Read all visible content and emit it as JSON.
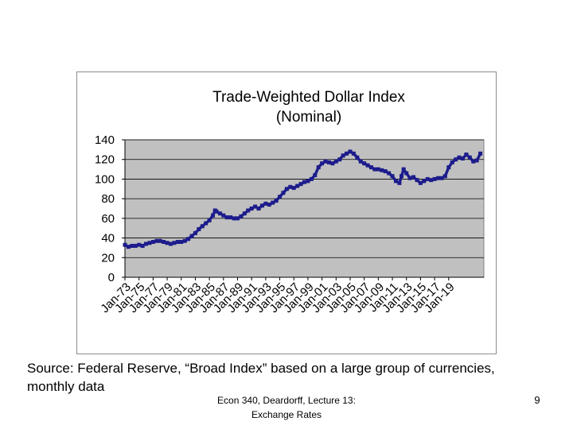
{
  "chart_data": {
    "type": "line",
    "title": "Trade-Weighted Dollar Index (Nominal)",
    "title_lines": [
      "Trade-Weighted Dollar Index",
      "(Nominal)"
    ],
    "xlabel": "",
    "ylabel": "",
    "ylim": [
      0,
      140
    ],
    "y_ticks": [
      0,
      20,
      40,
      60,
      80,
      100,
      120,
      140
    ],
    "x_ticks": [
      "Jan-73",
      "Jan-75",
      "Jan-77",
      "Jan-79",
      "Jan-81",
      "Jan-83",
      "Jan-85",
      "Jan-87",
      "Jan-89",
      "Jan-91",
      "Jan-93",
      "Jan-95",
      "Jan-97",
      "Jan-99",
      "Jan-01",
      "Jan-03",
      "Jan-05",
      "Jan-07",
      "Jan-09",
      "Jan-11",
      "Jan-13",
      "Jan-15",
      "Jan-17",
      "Jan-19"
    ],
    "grid": true,
    "plot_background": "#c0c0c0",
    "series": [
      {
        "color": "#1c1c8c",
        "marker": "filled-square",
        "points": [
          [
            1973.0,
            33
          ],
          [
            1973.5,
            31
          ],
          [
            1974.0,
            32
          ],
          [
            1974.5,
            32
          ],
          [
            1975.0,
            33
          ],
          [
            1975.5,
            32
          ],
          [
            1976.0,
            34
          ],
          [
            1976.5,
            35
          ],
          [
            1977.0,
            36
          ],
          [
            1977.5,
            37
          ],
          [
            1978.0,
            37
          ],
          [
            1978.5,
            36
          ],
          [
            1979.0,
            35
          ],
          [
            1979.5,
            34
          ],
          [
            1980.0,
            35
          ],
          [
            1980.5,
            36
          ],
          [
            1981.0,
            36
          ],
          [
            1981.5,
            37
          ],
          [
            1982.0,
            39
          ],
          [
            1982.5,
            42
          ],
          [
            1983.0,
            45
          ],
          [
            1983.5,
            49
          ],
          [
            1984.0,
            52
          ],
          [
            1984.5,
            55
          ],
          [
            1985.0,
            58
          ],
          [
            1985.5,
            63
          ],
          [
            1985.8,
            68
          ],
          [
            1986.0,
            67
          ],
          [
            1986.5,
            65
          ],
          [
            1987.0,
            63
          ],
          [
            1987.5,
            61
          ],
          [
            1988.0,
            61
          ],
          [
            1988.5,
            60
          ],
          [
            1989.0,
            60
          ],
          [
            1989.5,
            62
          ],
          [
            1990.0,
            65
          ],
          [
            1990.5,
            68
          ],
          [
            1991.0,
            70
          ],
          [
            1991.5,
            72
          ],
          [
            1992.0,
            70
          ],
          [
            1992.5,
            73
          ],
          [
            1993.0,
            75
          ],
          [
            1993.5,
            74
          ],
          [
            1994.0,
            76
          ],
          [
            1994.5,
            78
          ],
          [
            1995.0,
            82
          ],
          [
            1995.5,
            86
          ],
          [
            1996.0,
            90
          ],
          [
            1996.5,
            92
          ],
          [
            1997.0,
            91
          ],
          [
            1997.5,
            93
          ],
          [
            1998.0,
            95
          ],
          [
            1998.5,
            97
          ],
          [
            1999.0,
            98
          ],
          [
            1999.5,
            100
          ],
          [
            2000.0,
            104
          ],
          [
            2000.5,
            112
          ],
          [
            2001.0,
            116
          ],
          [
            2001.5,
            118
          ],
          [
            2002.0,
            117
          ],
          [
            2002.5,
            116
          ],
          [
            2003.0,
            118
          ],
          [
            2003.5,
            120
          ],
          [
            2004.0,
            124
          ],
          [
            2004.5,
            126
          ],
          [
            2005.0,
            128
          ],
          [
            2005.5,
            126
          ],
          [
            2006.0,
            122
          ],
          [
            2006.5,
            118
          ],
          [
            2007.0,
            116
          ],
          [
            2007.5,
            114
          ],
          [
            2008.0,
            112
          ],
          [
            2008.5,
            110
          ],
          [
            2009.0,
            110
          ],
          [
            2009.5,
            109
          ],
          [
            2010.0,
            108
          ],
          [
            2010.5,
            106
          ],
          [
            2011.0,
            103
          ],
          [
            2011.5,
            98
          ],
          [
            2012.0,
            96
          ],
          [
            2012.3,
            103
          ],
          [
            2012.6,
            110
          ],
          [
            2013.0,
            106
          ],
          [
            2013.5,
            101
          ],
          [
            2014.0,
            102
          ],
          [
            2014.5,
            99
          ],
          [
            2015.0,
            96
          ],
          [
            2015.5,
            98
          ],
          [
            2016.0,
            100
          ],
          [
            2016.5,
            99
          ],
          [
            2017.0,
            100
          ],
          [
            2017.5,
            101
          ],
          [
            2018.0,
            101
          ],
          [
            2018.5,
            103
          ],
          [
            2019.0,
            112
          ],
          [
            2019.5,
            117
          ],
          [
            2020.0,
            120
          ],
          [
            2020.5,
            122
          ],
          [
            2021.0,
            121
          ],
          [
            2021.5,
            125
          ],
          [
            2022.0,
            122
          ],
          [
            2022.5,
            118
          ],
          [
            2023.0,
            119
          ],
          [
            2023.5,
            126
          ]
        ]
      }
    ]
  },
  "slide": {
    "source_note": "Source:  Federal Reserve, “Broad Index” based on a large group of currencies, monthly data",
    "footer_line1": "Econ 340, Deardorff, Lecture 13:",
    "footer_line2": "Exchange Rates",
    "page_number": "9"
  }
}
